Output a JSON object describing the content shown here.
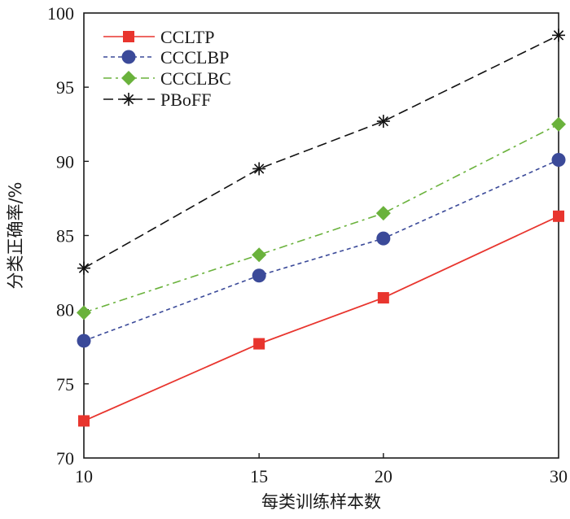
{
  "chart_data": {
    "type": "line",
    "title": "",
    "xlabel": "每类训练样本数",
    "ylabel": "分类正确率/%",
    "x_scale": "log",
    "x": [
      10,
      15,
      20,
      30
    ],
    "x_ticks": [
      "10",
      "15",
      "20",
      "30"
    ],
    "xlim": [
      10,
      30
    ],
    "ylim": [
      70,
      100
    ],
    "y_ticks": [
      "70",
      "75",
      "80",
      "85",
      "90",
      "95",
      "100"
    ],
    "grid": false,
    "legend_position": "top-left",
    "series": [
      {
        "name": "CCLTP",
        "color": "#e8352e",
        "marker": "square",
        "line_style": "solid",
        "values": [
          72.5,
          77.7,
          80.8,
          86.3
        ]
      },
      {
        "name": "CCCLBP",
        "color": "#3b4a99",
        "marker": "circle",
        "line_style": "dotted",
        "values": [
          77.9,
          82.3,
          84.8,
          90.1
        ]
      },
      {
        "name": "CCCLBC",
        "color": "#6ab23c",
        "marker": "diamond",
        "line_style": "dashdot",
        "values": [
          79.8,
          83.7,
          86.5,
          92.5
        ]
      },
      {
        "name": "PBoFF",
        "color": "#111111",
        "marker": "asterisk",
        "line_style": "dashed",
        "values": [
          82.8,
          89.5,
          92.7,
          98.5
        ]
      }
    ]
  }
}
